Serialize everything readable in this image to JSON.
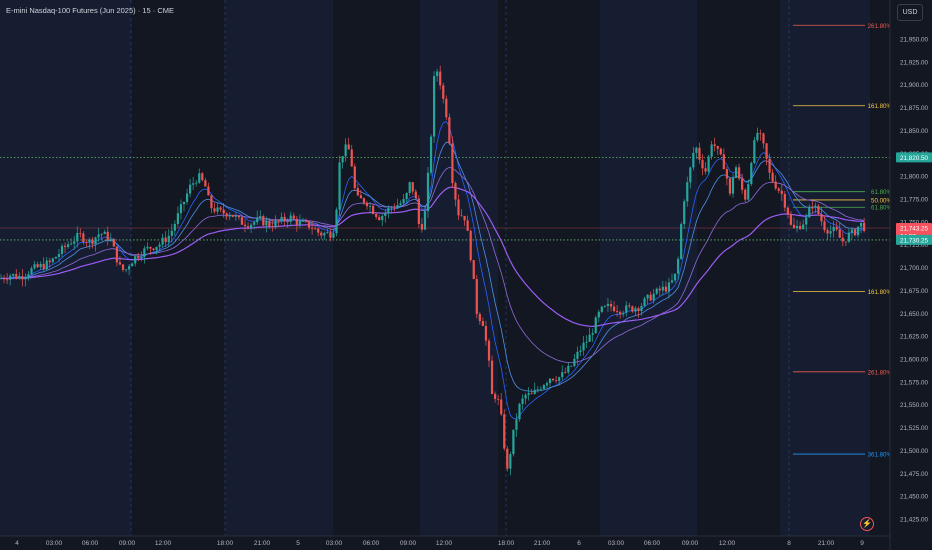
{
  "header": {
    "title": "E-mini Nasdaq-100 Futures (Jun 2025) · 15 · CME",
    "currency": "USD"
  },
  "colors": {
    "background": "#131722",
    "session_band": "#161d30",
    "up": "#26a69a",
    "down": "#ef5350",
    "ma_fast": "#2962ff",
    "ma_mid": "#4f8fe6",
    "ma_slow": "#9c5cf4",
    "ma_slowest": "#8e6ad8",
    "hline_green": "#66bb6a",
    "fib_red": "#f05a4e",
    "fib_yellow": "#f5c843",
    "fib_green": "#4caf50",
    "fib_blue": "#2196f3",
    "price_current": "#f7525f",
    "price_green": "#26a69a"
  },
  "icons": {
    "lightning": "lightning-icon"
  },
  "chart_data": {
    "type": "candlestick",
    "title": "E-mini Nasdaq-100 Futures (Jun 2025) · 15 · CME",
    "ylim": [
      21410,
      21985
    ],
    "y_ticks": [
      "21,950.00",
      "21,925.00",
      "21,900.00",
      "21,875.00",
      "21,850.00",
      "21,825.00",
      "21,800.00",
      "21,775.00",
      "21,750.00",
      "21,725.00",
      "21,700.00",
      "21,675.00",
      "21,650.00",
      "21,625.00",
      "21,600.00",
      "21,575.00",
      "21,550.00",
      "21,525.00",
      "21,500.00",
      "21,475.00",
      "21,450.00",
      "21,425.00"
    ],
    "x_ticks": [
      "4",
      "03:00",
      "06:00",
      "09:00",
      "12:00",
      "18:00",
      "21:00",
      "5",
      "03:00",
      "06:00",
      "09:00",
      "12:00",
      "18:00",
      "21:00",
      "6",
      "03:00",
      "06:00",
      "09:00",
      "12:00",
      "8",
      "21:00",
      "9"
    ],
    "vertical_separators": [
      "4",
      "5",
      "6",
      "8"
    ],
    "session_bands": [
      [
        0,
        131
      ],
      [
        225,
        333
      ],
      [
        420,
        498
      ],
      [
        600,
        697
      ],
      [
        780,
        870
      ]
    ],
    "close_anchors": [
      [
        0,
        21688
      ],
      [
        10,
        21692
      ],
      [
        20,
        21690
      ],
      [
        30,
        21697
      ],
      [
        40,
        21701
      ],
      [
        50,
        21705
      ],
      [
        60,
        21717
      ],
      [
        70,
        21728
      ],
      [
        80,
        21735
      ],
      [
        90,
        21728
      ],
      [
        100,
        21738
      ],
      [
        110,
        21732
      ],
      [
        120,
        21700
      ],
      [
        125,
        21696
      ],
      [
        130,
        21706
      ],
      [
        140,
        21716
      ],
      [
        150,
        21722
      ],
      [
        160,
        21726
      ],
      [
        170,
        21736
      ],
      [
        180,
        21762
      ],
      [
        190,
        21788
      ],
      [
        198,
        21800
      ],
      [
        205,
        21790
      ],
      [
        210,
        21767
      ],
      [
        220,
        21760
      ],
      [
        230,
        21760
      ],
      [
        240,
        21750
      ],
      [
        250,
        21748
      ],
      [
        260,
        21752
      ],
      [
        270,
        21747
      ],
      [
        280,
        21750
      ],
      [
        290,
        21755
      ],
      [
        300,
        21748
      ],
      [
        310,
        21746
      ],
      [
        320,
        21737
      ],
      [
        330,
        21737
      ],
      [
        335,
        21745
      ],
      [
        340,
        21820
      ],
      [
        345,
        21830
      ],
      [
        350,
        21828
      ],
      [
        356,
        21775
      ],
      [
        366,
        21773
      ],
      [
        375,
        21760
      ],
      [
        380,
        21755
      ],
      [
        390,
        21765
      ],
      [
        400,
        21770
      ],
      [
        405,
        21773
      ],
      [
        410,
        21792
      ],
      [
        415,
        21780
      ],
      [
        420,
        21738
      ],
      [
        425,
        21760
      ],
      [
        430,
        21825
      ],
      [
        434,
        21905
      ],
      [
        438,
        21918
      ],
      [
        442,
        21890
      ],
      [
        448,
        21860
      ],
      [
        452,
        21800
      ],
      [
        458,
        21760
      ],
      [
        465,
        21755
      ],
      [
        470,
        21720
      ],
      [
        477,
        21650
      ],
      [
        483,
        21640
      ],
      [
        488,
        21605
      ],
      [
        492,
        21560
      ],
      [
        497,
        21560
      ],
      [
        502,
        21530
      ],
      [
        507,
        21475
      ],
      [
        512,
        21510
      ],
      [
        518,
        21545
      ],
      [
        525,
        21560
      ],
      [
        532,
        21560
      ],
      [
        540,
        21570
      ],
      [
        550,
        21580
      ],
      [
        560,
        21580
      ],
      [
        570,
        21590
      ],
      [
        580,
        21610
      ],
      [
        590,
        21625
      ],
      [
        600,
        21652
      ],
      [
        610,
        21658
      ],
      [
        620,
        21654
      ],
      [
        630,
        21655
      ],
      [
        640,
        21658
      ],
      [
        650,
        21668
      ],
      [
        660,
        21675
      ],
      [
        670,
        21680
      ],
      [
        677,
        21695
      ],
      [
        683,
        21770
      ],
      [
        689,
        21800
      ],
      [
        695,
        21835
      ],
      [
        700,
        21818
      ],
      [
        706,
        21805
      ],
      [
        712,
        21840
      ],
      [
        718,
        21825
      ],
      [
        725,
        21810
      ],
      [
        730,
        21778
      ],
      [
        735,
        21815
      ],
      [
        740,
        21790
      ],
      [
        746,
        21775
      ],
      [
        752,
        21825
      ],
      [
        758,
        21850
      ],
      [
        764,
        21830
      ],
      [
        770,
        21800
      ],
      [
        776,
        21790
      ],
      [
        782,
        21780
      ],
      [
        788,
        21760
      ],
      [
        792,
        21740
      ],
      [
        798,
        21745
      ],
      [
        806,
        21752
      ],
      [
        812,
        21770
      ],
      [
        818,
        21760
      ],
      [
        824,
        21745
      ],
      [
        830,
        21740
      ],
      [
        836,
        21740
      ],
      [
        842,
        21728
      ],
      [
        848,
        21735
      ],
      [
        854,
        21738
      ],
      [
        860,
        21748
      ],
      [
        866,
        21743
      ]
    ],
    "horizontal_lines": [
      {
        "price": 21820.5,
        "label": "21,820.50",
        "style": "dotted",
        "color_key": "hline_green"
      },
      {
        "price": 21730.25,
        "label": "21,730.25",
        "style": "dotted",
        "color_key": "hline_green"
      }
    ],
    "current_price": {
      "price": 21743.25,
      "label": "21,743.25",
      "countdown": "04:57"
    },
    "fib_levels": [
      {
        "price": 21965,
        "label": "261.80%",
        "color_key": "fib_red"
      },
      {
        "price": 21877,
        "label": "161.80%",
        "color_key": "fib_yellow"
      },
      {
        "price": 21783,
        "label": "61.80%",
        "color_key": "fib_green"
      },
      {
        "price": 21774,
        "label": "50.00%",
        "color_key": "fib_yellow"
      },
      {
        "price": 21766,
        "label": "61.80%",
        "color_key": "fib_green"
      },
      {
        "price": 21674,
        "label": "161.80%",
        "color_key": "fib_yellow"
      },
      {
        "price": 21586,
        "label": "261.80%",
        "color_key": "fib_red"
      },
      {
        "price": 21496,
        "label": "361.80%",
        "color_key": "fib_blue"
      }
    ]
  }
}
